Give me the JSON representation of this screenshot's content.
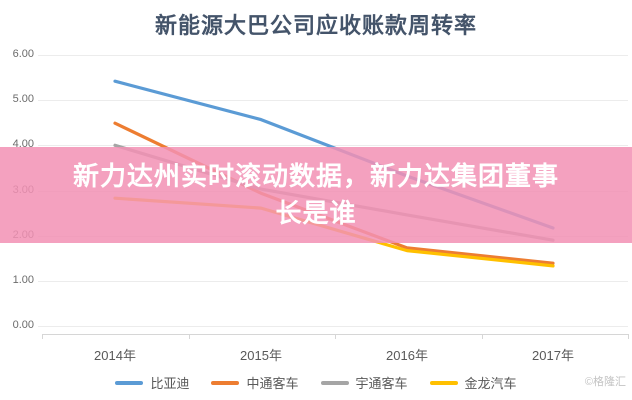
{
  "chart_data": {
    "type": "line",
    "title": "新能源大巴公司应收账款周转率",
    "categories": [
      "2014年",
      "2015年",
      "2016年",
      "2017年"
    ],
    "series": [
      {
        "name": "比亚迪",
        "color": "#5B9BD5",
        "values": [
          5.42,
          4.57,
          3.32,
          2.17
        ]
      },
      {
        "name": "中通客车",
        "color": "#ED7D31",
        "values": [
          4.49,
          2.94,
          1.73,
          1.39
        ]
      },
      {
        "name": "宇通客车",
        "color": "#A5A5A5",
        "values": [
          4.0,
          3.03,
          2.46,
          1.9
        ]
      },
      {
        "name": "金龙汽车",
        "color": "#FFC000",
        "values": [
          2.83,
          2.61,
          1.67,
          1.33
        ]
      }
    ],
    "ylabel": "",
    "xlabel": "",
    "ylim": [
      0,
      6
    ],
    "ytick_labels": [
      "6.00",
      "5.00",
      "4.00",
      "3.00",
      "2.00",
      "1.00",
      "0.00"
    ],
    "grid": "horizontal",
    "legend_position": "bottom"
  },
  "banner": {
    "line1": "新力达州实时滚动数据，新力达集团董事",
    "line2": "长是谁",
    "background_color": "#F291B4",
    "text_color": "#FFFFFF"
  },
  "watermark": {
    "text": "©格隆汇"
  }
}
